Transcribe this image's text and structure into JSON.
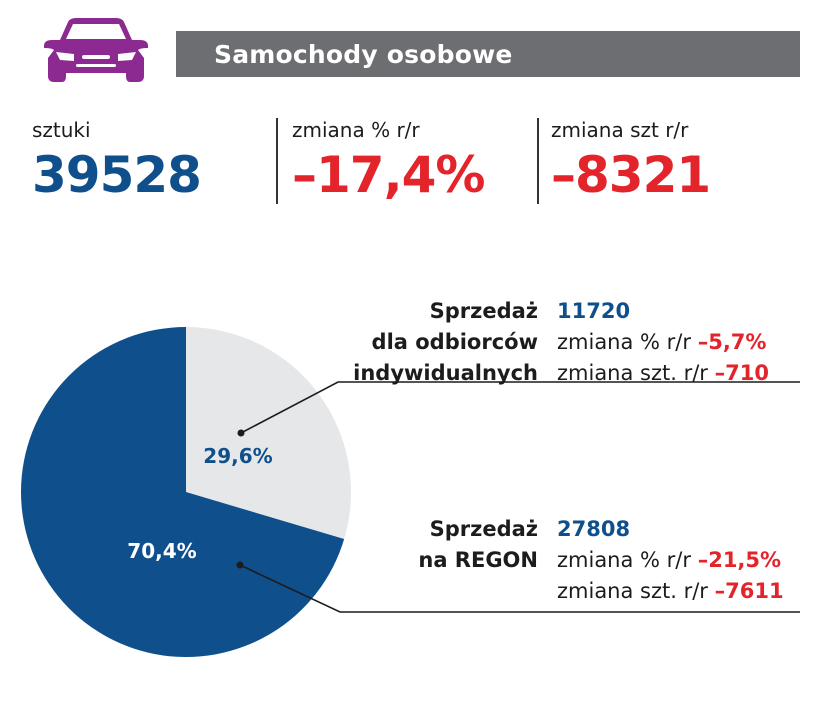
{
  "header": {
    "title": "Samochody osobowe",
    "icon": "car-icon"
  },
  "stats": [
    {
      "label": "sztuki",
      "value": "39528"
    },
    {
      "label": "zmiana % r/r",
      "value": "–17,4%"
    },
    {
      "label": "zmiana szt r/r",
      "value": "–8321"
    }
  ],
  "segments": [
    {
      "title_lines": [
        "Sprzedaż",
        "dla odbiorców",
        "indywidualnych"
      ],
      "count": "11720",
      "pct_label": "zmiana % r/r",
      "pct_change": "–5,7%",
      "units_label": "zmiana szt. r/r",
      "units_change": "–710"
    },
    {
      "title_lines": [
        "Sprzedaż",
        "na REGON"
      ],
      "count": "27808",
      "pct_label": "zmiana % r/r",
      "pct_change": "–21,5%",
      "units_label": "zmiana szt. r/r",
      "units_change": "–7611"
    }
  ],
  "chart_data": {
    "type": "pie",
    "slices": [
      {
        "label": "29,6%",
        "value": 29.6,
        "color": "#e6e7e9",
        "label_color": "#0f4f8c"
      },
      {
        "label": "70,4%",
        "value": 70.4,
        "color": "#0f4f8c",
        "label_color": "#ffffff"
      }
    ]
  },
  "colors": {
    "accent_purple": "#8c2a91",
    "header_bg": "#6d6e71",
    "value_blue": "#0f4f8c",
    "value_red": "#e3242b",
    "leader_line": "#1c1c1c"
  }
}
